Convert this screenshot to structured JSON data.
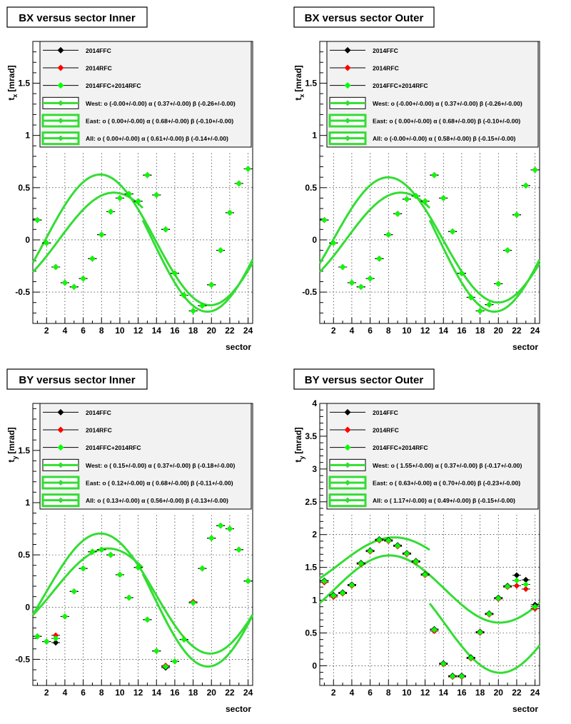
{
  "panels": [
    {
      "title": "BX versus  sector Inner",
      "ylabel": "t",
      "ysub": "x",
      "yunit": "[mrad]",
      "xlabel": "sector",
      "legend": [
        {
          "label": "2014FFC",
          "color": "#000000",
          "kind": "marker"
        },
        {
          "label": "2014RFC",
          "color": "#ff0000",
          "kind": "marker"
        },
        {
          "label": "2014FFC+2014RFC",
          "color": "#00ff00",
          "kind": "marker"
        },
        {
          "label": "West: o (-0.00+/-0.00) α ( 0.37+/-0.00) β (-0.26+/-0.00)",
          "color": "#33dd33",
          "kind": "fit"
        },
        {
          "label": "East: o ( 0.00+/-0.00) α ( 0.68+/-0.00) β (-0.10+/-0.00)",
          "color": "#33dd33",
          "kind": "fit"
        },
        {
          "label": "All: o ( 0.00+/-0.00) α ( 0.61+/-0.00) β (-0.14+/-0.00)",
          "color": "#33dd33",
          "kind": "fit"
        }
      ]
    },
    {
      "title": "BX versus  sector Outer",
      "ylabel": "t",
      "ysub": "x",
      "yunit": "[mrad]",
      "xlabel": "sector",
      "legend": [
        {
          "label": "2014FFC",
          "color": "#000000",
          "kind": "marker"
        },
        {
          "label": "2014RFC",
          "color": "#ff0000",
          "kind": "marker"
        },
        {
          "label": "2014FFC+2014RFC",
          "color": "#00ff00",
          "kind": "marker"
        },
        {
          "label": "West: o (-0.00+/-0.00) α ( 0.37+/-0.00) β (-0.26+/-0.00)",
          "color": "#33dd33",
          "kind": "fit"
        },
        {
          "label": "East: o ( 0.00+/-0.00) α ( 0.68+/-0.00) β (-0.10+/-0.00)",
          "color": "#33dd33",
          "kind": "fit"
        },
        {
          "label": "All: o (-0.00+/-0.00) α ( 0.58+/-0.00) β (-0.15+/-0.00)",
          "color": "#33dd33",
          "kind": "fit"
        }
      ]
    },
    {
      "title": "BY versus  sector Inner",
      "ylabel": "t",
      "ysub": "y",
      "yunit": "[mrad]",
      "xlabel": "sector",
      "legend": [
        {
          "label": "2014FFC",
          "color": "#000000",
          "kind": "marker"
        },
        {
          "label": "2014RFC",
          "color": "#ff0000",
          "kind": "marker"
        },
        {
          "label": "2014FFC+2014RFC",
          "color": "#00ff00",
          "kind": "marker"
        },
        {
          "label": "West: o ( 0.15+/-0.00) α ( 0.37+/-0.00) β (-0.18+/-0.00)",
          "color": "#33dd33",
          "kind": "fit"
        },
        {
          "label": "East: o ( 0.12+/-0.00) α ( 0.68+/-0.00) β (-0.11+/-0.00)",
          "color": "#33dd33",
          "kind": "fit"
        },
        {
          "label": "All: o ( 0.13+/-0.00) α ( 0.56+/-0.00) β (-0.13+/-0.00)",
          "color": "#33dd33",
          "kind": "fit"
        }
      ]
    },
    {
      "title": "BY versus  sector Outer",
      "ylabel": "t",
      "ysub": "y",
      "yunit": "[mrad]",
      "xlabel": "sector",
      "legend": [
        {
          "label": "2014FFC",
          "color": "#000000",
          "kind": "marker"
        },
        {
          "label": "2014RFC",
          "color": "#ff0000",
          "kind": "marker"
        },
        {
          "label": "2014FFC+2014RFC",
          "color": "#00ff00",
          "kind": "marker"
        },
        {
          "label": "West: o ( 1.55+/-0.00) α ( 0.37+/-0.00) β (-0.17+/-0.00)",
          "color": "#33dd33",
          "kind": "fit"
        },
        {
          "label": "East: o ( 0.63+/-0.00) α ( 0.70+/-0.00) β (-0.23+/-0.00)",
          "color": "#33dd33",
          "kind": "fit"
        },
        {
          "label": "All: o ( 1.17+/-0.00) α ( 0.49+/-0.00) β (-0.15+/-0.00)",
          "color": "#33dd33",
          "kind": "fit"
        }
      ]
    }
  ],
  "chart_data": [
    {
      "type": "scatter",
      "title": "BX versus  sector Inner",
      "xlabel": "sector",
      "ylabel": "t_x [mrad]",
      "xlim": [
        0.5,
        24.5
      ],
      "ylim": [
        -0.8,
        1.9
      ],
      "plot_ylim": [
        -0.8,
        0.83
      ],
      "xticks": [
        2,
        4,
        6,
        8,
        10,
        12,
        14,
        16,
        18,
        20,
        22,
        24
      ],
      "yticks": [
        -0.5,
        0,
        0.5,
        1,
        1.5
      ],
      "grid": true,
      "legend_position": "top",
      "x": [
        1,
        2,
        3,
        4,
        5,
        6,
        7,
        8,
        9,
        10,
        11,
        12,
        13,
        14,
        15,
        16,
        17,
        18,
        19,
        20,
        21,
        22,
        23,
        24
      ],
      "series": [
        {
          "name": "2014FFC",
          "color": "#000000",
          "values": [
            0.19,
            -0.03,
            -0.26,
            -0.41,
            -0.45,
            -0.37,
            -0.18,
            0.05,
            0.27,
            0.4,
            0.44,
            0.37,
            0.62,
            0.43,
            0.1,
            -0.32,
            -0.53,
            -0.68,
            -0.63,
            -0.43,
            -0.1,
            0.26,
            0.54,
            0.68
          ]
        },
        {
          "name": "2014RFC",
          "color": "#ff0000",
          "values": [
            0.19,
            -0.03,
            -0.26,
            -0.41,
            -0.45,
            -0.37,
            -0.18,
            0.05,
            0.27,
            0.4,
            0.44,
            0.37,
            0.62,
            0.43,
            0.1,
            -0.32,
            -0.53,
            -0.68,
            -0.63,
            -0.43,
            -0.1,
            0.26,
            0.54,
            0.68
          ]
        },
        {
          "name": "2014FFC+2014RFC",
          "color": "#00ff00",
          "values": [
            0.19,
            -0.03,
            -0.26,
            -0.41,
            -0.45,
            -0.37,
            -0.18,
            0.05,
            0.27,
            0.4,
            0.44,
            0.37,
            0.62,
            0.43,
            0.1,
            -0.32,
            -0.53,
            -0.68,
            -0.63,
            -0.43,
            -0.1,
            0.26,
            0.54,
            0.68
          ]
        }
      ],
      "fits": [
        {
          "name": "West",
          "o": 0.0,
          "alpha": 0.37,
          "beta": -0.26,
          "range": [
            0.5,
            12.5
          ],
          "color": "#33dd33"
        },
        {
          "name": "East",
          "o": 0.0,
          "alpha": 0.68,
          "beta": -0.1,
          "range": [
            12.5,
            24.5
          ],
          "color": "#33dd33"
        },
        {
          "name": "All",
          "o": 0.0,
          "alpha": 0.61,
          "beta": -0.14,
          "range": [
            0.5,
            24.5
          ],
          "color": "#33dd33"
        }
      ]
    },
    {
      "type": "scatter",
      "title": "BX versus  sector Outer",
      "xlabel": "sector",
      "ylabel": "t_x [mrad]",
      "xlim": [
        0.5,
        24.5
      ],
      "ylim": [
        -0.8,
        1.9
      ],
      "plot_ylim": [
        -0.8,
        0.83
      ],
      "xticks": [
        2,
        4,
        6,
        8,
        10,
        12,
        14,
        16,
        18,
        20,
        22,
        24
      ],
      "yticks": [
        -0.5,
        0,
        0.5,
        1,
        1.5
      ],
      "grid": true,
      "legend_position": "top",
      "x": [
        1,
        2,
        3,
        4,
        5,
        6,
        7,
        8,
        9,
        10,
        11,
        12,
        13,
        14,
        15,
        16,
        17,
        18,
        19,
        20,
        21,
        22,
        23,
        24
      ],
      "series": [
        {
          "name": "2014FFC",
          "color": "#000000",
          "values": [
            0.19,
            -0.03,
            -0.26,
            -0.41,
            -0.45,
            -0.37,
            -0.18,
            0.05,
            0.25,
            0.39,
            0.42,
            0.37,
            0.62,
            0.4,
            0.08,
            -0.32,
            -0.55,
            -0.68,
            -0.62,
            -0.42,
            -0.1,
            0.24,
            0.52,
            0.67
          ]
        },
        {
          "name": "2014RFC",
          "color": "#ff0000",
          "values": [
            0.19,
            -0.03,
            -0.26,
            -0.41,
            -0.45,
            -0.37,
            -0.18,
            0.05,
            0.25,
            0.39,
            0.42,
            0.37,
            0.62,
            0.4,
            0.08,
            -0.32,
            -0.55,
            -0.68,
            -0.62,
            -0.42,
            -0.1,
            0.24,
            0.52,
            0.67
          ]
        },
        {
          "name": "2014FFC+2014RFC",
          "color": "#00ff00",
          "values": [
            0.19,
            -0.03,
            -0.26,
            -0.41,
            -0.45,
            -0.37,
            -0.18,
            0.05,
            0.25,
            0.39,
            0.42,
            0.37,
            0.62,
            0.4,
            0.08,
            -0.32,
            -0.55,
            -0.68,
            -0.62,
            -0.42,
            -0.1,
            0.24,
            0.52,
            0.67
          ]
        }
      ],
      "fits": [
        {
          "name": "West",
          "o": 0.0,
          "alpha": 0.37,
          "beta": -0.26,
          "range": [
            0.5,
            12.5
          ],
          "color": "#33dd33"
        },
        {
          "name": "East",
          "o": 0.0,
          "alpha": 0.68,
          "beta": -0.1,
          "range": [
            12.5,
            24.5
          ],
          "color": "#33dd33"
        },
        {
          "name": "All",
          "o": 0.0,
          "alpha": 0.58,
          "beta": -0.15,
          "range": [
            0.5,
            24.5
          ],
          "color": "#33dd33"
        }
      ]
    },
    {
      "type": "scatter",
      "title": "BY versus  sector Inner",
      "xlabel": "sector",
      "ylabel": "t_y [mrad]",
      "xlim": [
        0.5,
        24.5
      ],
      "ylim": [
        -0.75,
        1.95
      ],
      "plot_ylim": [
        -0.75,
        0.88
      ],
      "xticks": [
        2,
        4,
        6,
        8,
        10,
        12,
        14,
        16,
        18,
        20,
        22,
        24
      ],
      "yticks": [
        -0.5,
        0,
        0.5,
        1,
        1.5
      ],
      "grid": true,
      "legend_position": "top",
      "x": [
        1,
        2,
        3,
        4,
        5,
        6,
        7,
        8,
        9,
        10,
        11,
        12,
        13,
        14,
        15,
        16,
        17,
        18,
        19,
        20,
        21,
        22,
        23,
        24
      ],
      "series": [
        {
          "name": "2014FFC",
          "color": "#000000",
          "values": [
            -0.28,
            -0.33,
            -0.34,
            -0.09,
            0.15,
            0.37,
            0.53,
            0.55,
            0.5,
            0.31,
            0.09,
            0.38,
            -0.12,
            -0.42,
            -0.58,
            -0.52,
            -0.31,
            0.05,
            0.37,
            0.66,
            0.78,
            0.75,
            0.55,
            0.25
          ]
        },
        {
          "name": "2014RFC",
          "color": "#ff0000",
          "values": [
            -0.28,
            -0.33,
            -0.27,
            -0.09,
            0.15,
            0.37,
            0.53,
            0.55,
            0.5,
            0.31,
            0.09,
            0.38,
            -0.12,
            -0.42,
            -0.56,
            -0.52,
            -0.31,
            0.05,
            0.37,
            0.66,
            0.78,
            0.75,
            0.55,
            0.25
          ]
        },
        {
          "name": "2014FFC+2014RFC",
          "color": "#00ff00",
          "values": [
            -0.28,
            -0.33,
            -0.3,
            -0.09,
            0.15,
            0.37,
            0.53,
            0.55,
            0.5,
            0.31,
            0.09,
            0.38,
            -0.12,
            -0.42,
            -0.57,
            -0.52,
            -0.31,
            0.04,
            0.37,
            0.66,
            0.78,
            0.75,
            0.55,
            0.25
          ]
        }
      ],
      "fits": [
        {
          "name": "West",
          "o": 0.15,
          "alpha": 0.37,
          "beta": -0.18,
          "range": [
            0.5,
            12.5
          ],
          "color": "#33dd33"
        },
        {
          "name": "East",
          "o": 0.12,
          "alpha": 0.68,
          "beta": -0.11,
          "range": [
            12.5,
            24.5
          ],
          "color": "#33dd33"
        },
        {
          "name": "All",
          "o": 0.13,
          "alpha": 0.56,
          "beta": -0.13,
          "range": [
            0.5,
            24.5
          ],
          "color": "#33dd33"
        }
      ]
    },
    {
      "type": "scatter",
      "title": "BY versus  sector Outer",
      "xlabel": "sector",
      "ylabel": "t_y [mrad]",
      "xlim": [
        0.5,
        24.5
      ],
      "ylim": [
        -0.3,
        4.0
      ],
      "plot_ylim": [
        -0.3,
        2.3
      ],
      "xticks": [
        2,
        4,
        6,
        8,
        10,
        12,
        14,
        16,
        18,
        20,
        22,
        24
      ],
      "yticks": [
        0,
        0.5,
        1,
        1.5,
        2,
        2.5,
        3,
        3.5,
        4
      ],
      "grid": true,
      "legend_position": "top",
      "x": [
        1,
        2,
        3,
        4,
        5,
        6,
        7,
        8,
        9,
        10,
        11,
        12,
        13,
        14,
        15,
        16,
        17,
        18,
        19,
        20,
        21,
        22,
        23,
        24
      ],
      "series": [
        {
          "name": "2014FFC",
          "color": "#000000",
          "values": [
            1.3,
            1.08,
            1.12,
            1.24,
            1.57,
            1.76,
            1.93,
            1.92,
            1.84,
            1.72,
            1.6,
            1.4,
            0.56,
            0.04,
            -0.15,
            -0.15,
            0.13,
            0.52,
            0.8,
            1.04,
            1.22,
            1.38,
            1.31,
            0.93
          ]
        },
        {
          "name": "2014RFC",
          "color": "#ff0000",
          "values": [
            1.27,
            1.05,
            1.1,
            1.22,
            1.55,
            1.74,
            1.91,
            1.9,
            1.82,
            1.7,
            1.58,
            1.38,
            0.53,
            0.02,
            -0.17,
            -0.17,
            0.11,
            0.5,
            0.78,
            1.02,
            1.2,
            1.22,
            1.17,
            0.87
          ]
        },
        {
          "name": "2014FFC+2014RFC",
          "color": "#00ff00",
          "values": [
            1.29,
            1.07,
            1.11,
            1.23,
            1.56,
            1.75,
            1.92,
            1.91,
            1.83,
            1.71,
            1.59,
            1.39,
            0.55,
            0.03,
            -0.16,
            -0.16,
            0.12,
            0.51,
            0.79,
            1.03,
            1.21,
            1.3,
            1.24,
            0.9
          ]
        }
      ],
      "fits": [
        {
          "name": "West",
          "o": 1.55,
          "alpha": 0.37,
          "beta": -0.17,
          "range": [
            0.5,
            12.5
          ],
          "color": "#33dd33"
        },
        {
          "name": "East",
          "o": 0.63,
          "alpha": 0.7,
          "beta": -0.23,
          "range": [
            12.5,
            24.5
          ],
          "color": "#33dd33"
        },
        {
          "name": "All",
          "o": 1.17,
          "alpha": 0.49,
          "beta": -0.15,
          "range": [
            0.5,
            24.5
          ],
          "color": "#33dd33"
        }
      ]
    }
  ]
}
